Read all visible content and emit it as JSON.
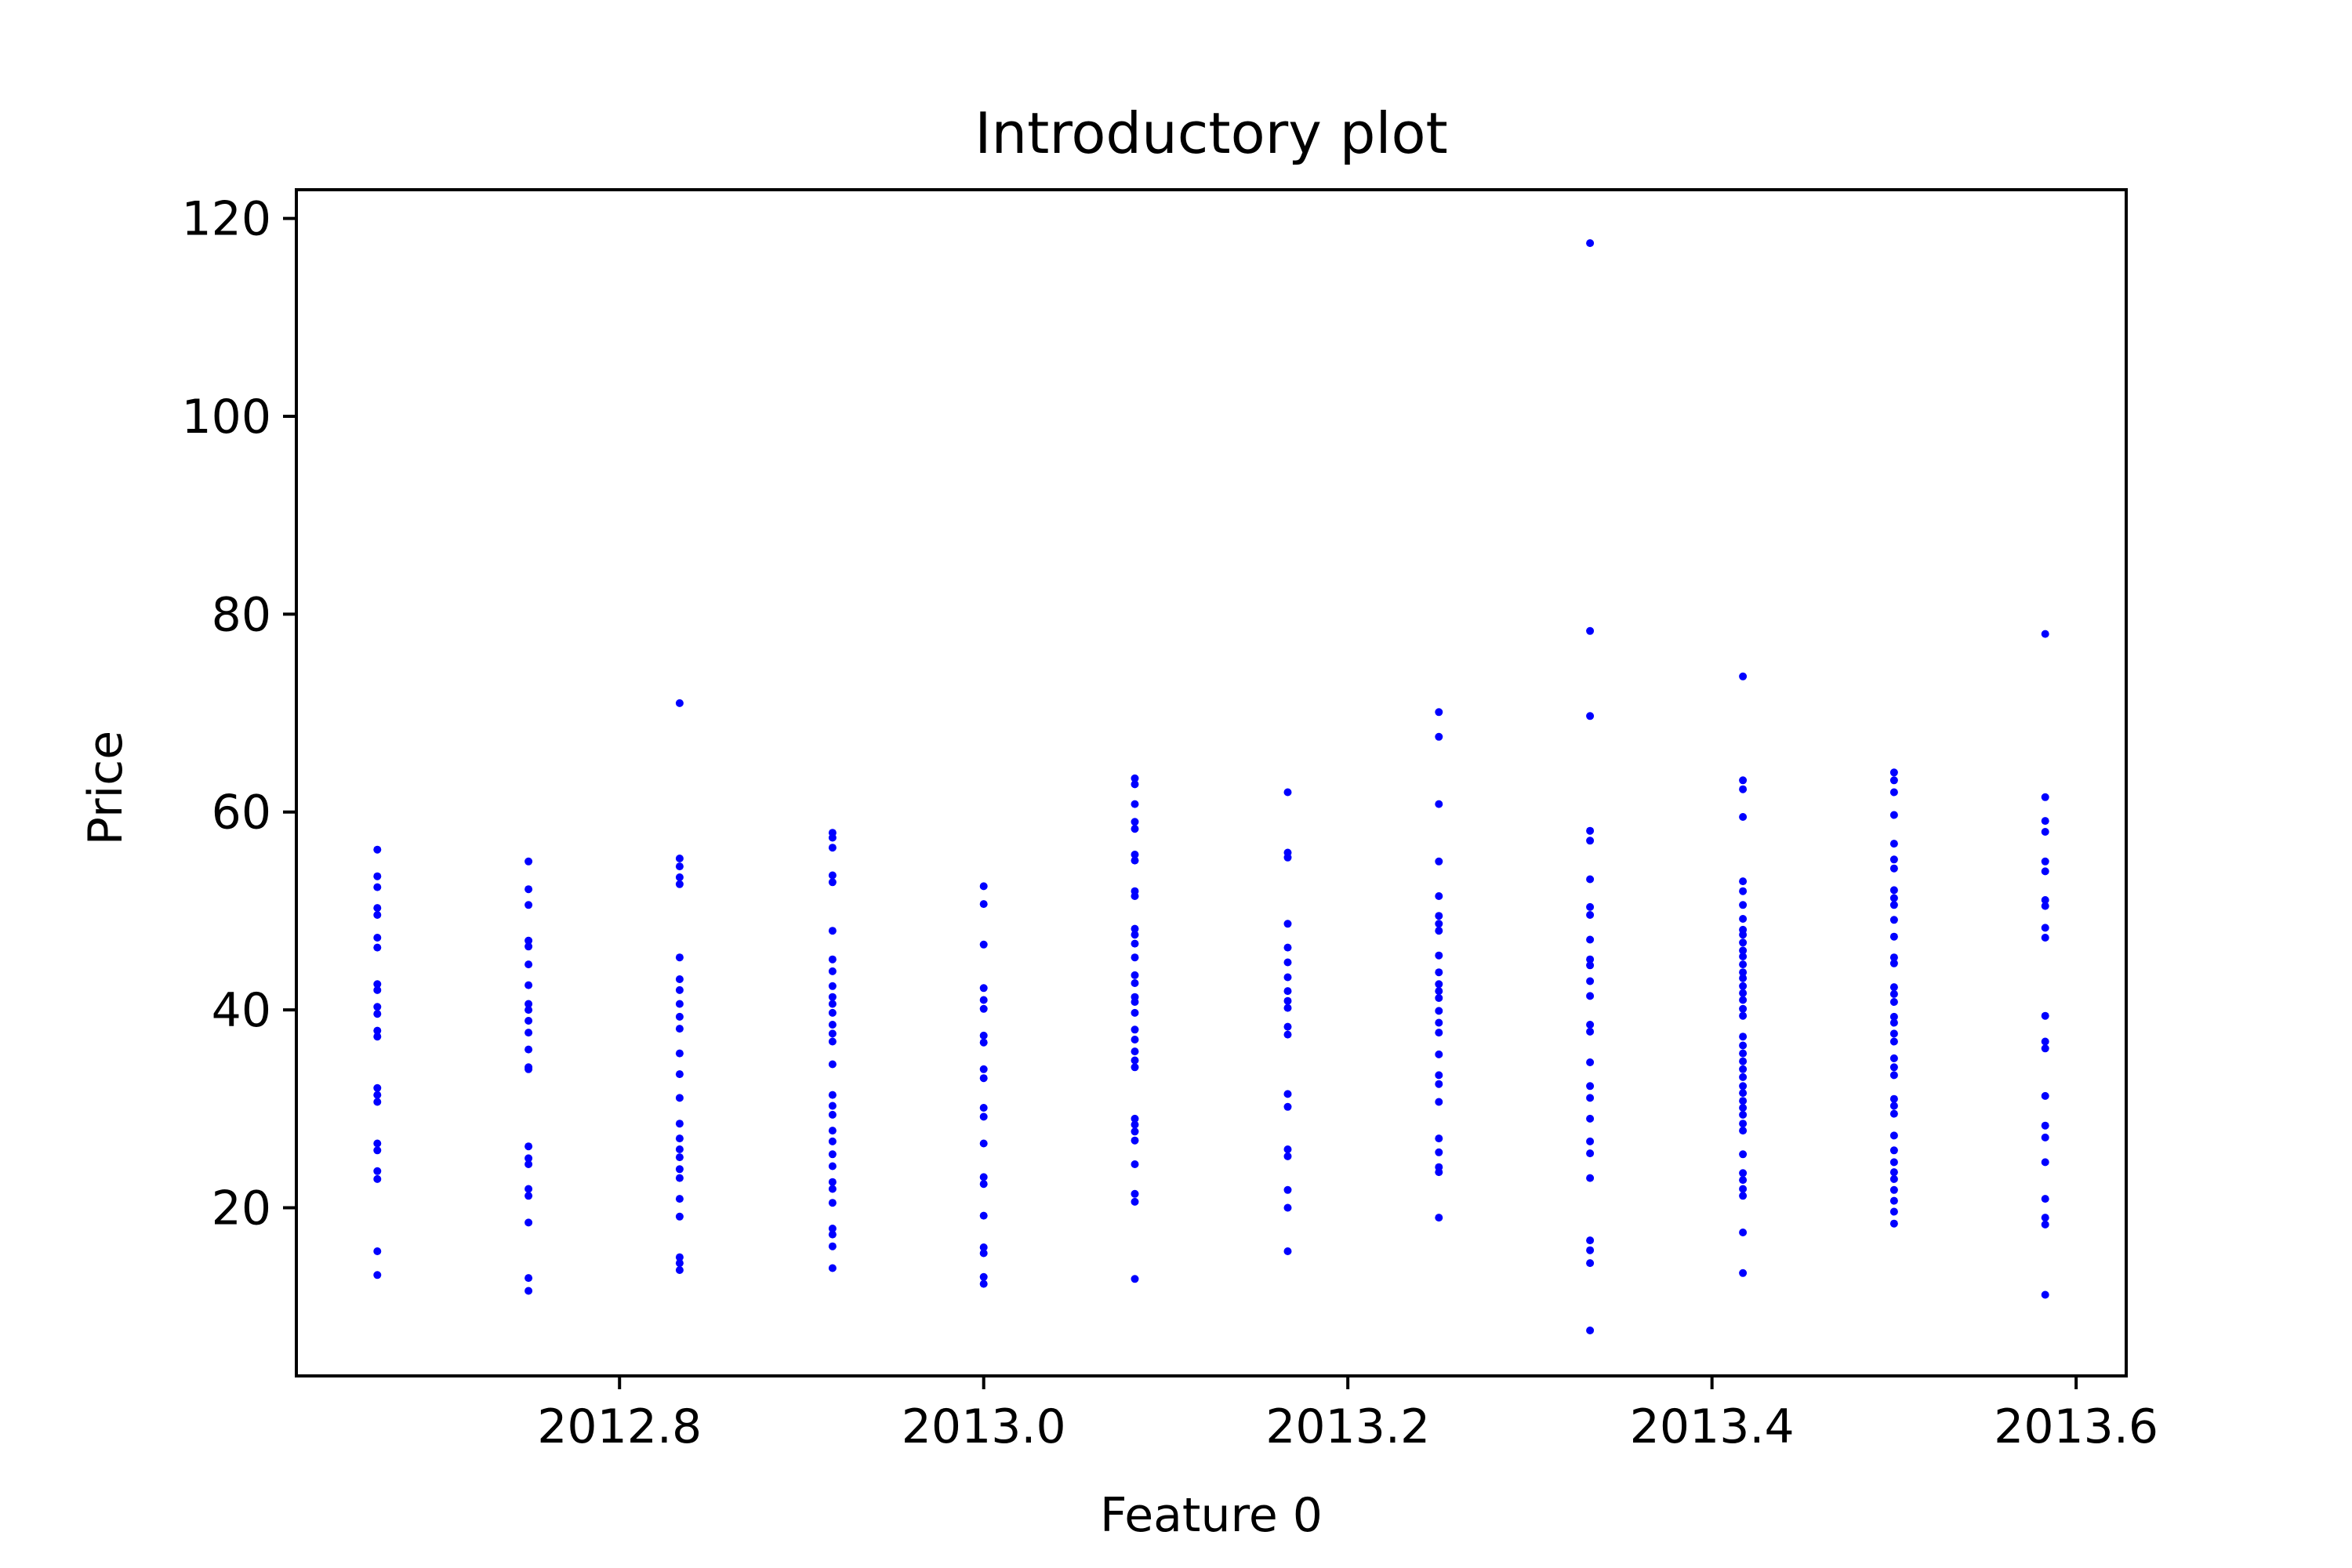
{
  "chart_data": {
    "type": "scatter",
    "title": "Introductory plot",
    "xlabel": "Feature 0",
    "ylabel": "Price",
    "xlim": [
      2012.6225,
      2013.6275
    ],
    "ylim": [
      3.0,
      122.9
    ],
    "xticks": [
      {
        "value": 2012.8,
        "label": "2012.8"
      },
      {
        "value": 2013.0,
        "label": "2013.0"
      },
      {
        "value": 2013.2,
        "label": "2013.2"
      },
      {
        "value": 2013.4,
        "label": "2013.4"
      },
      {
        "value": 2013.6,
        "label": "2013.6"
      }
    ],
    "yticks": [
      {
        "value": 20,
        "label": "20"
      },
      {
        "value": 40,
        "label": "40"
      },
      {
        "value": 60,
        "label": "60"
      },
      {
        "value": 80,
        "label": "80"
      },
      {
        "value": 100,
        "label": "100"
      },
      {
        "value": 120,
        "label": "120"
      }
    ],
    "grid": false,
    "marker_color": "#0000ff",
    "groups": [
      {
        "x": 2012.667,
        "y": [
          56.2,
          53.5,
          52.4,
          50.3,
          49.6,
          47.3,
          46.3,
          42.6,
          42.0,
          40.3,
          39.6,
          37.9,
          37.3,
          32.1,
          31.4,
          30.7,
          26.5,
          25.8,
          23.7,
          22.9,
          15.6,
          13.2
        ]
      },
      {
        "x": 2012.75,
        "y": [
          55.0,
          52.2,
          50.6,
          47.0,
          46.4,
          44.6,
          42.5,
          40.6,
          40.0,
          38.9,
          37.7,
          36.0,
          34.2,
          34.0,
          26.2,
          25.0,
          24.4,
          21.9,
          21.2,
          18.5,
          12.9,
          11.6
        ]
      },
      {
        "x": 2012.833,
        "y": [
          71.0,
          55.3,
          54.5,
          53.4,
          52.7,
          45.3,
          43.1,
          42.0,
          40.6,
          39.3,
          38.1,
          35.6,
          33.5,
          31.1,
          28.5,
          27.0,
          25.9,
          25.1,
          23.9,
          23.0,
          20.9,
          19.1,
          15.0,
          14.4,
          13.7
        ]
      },
      {
        "x": 2012.917,
        "y": [
          57.9,
          57.4,
          56.4,
          53.6,
          52.9,
          48.0,
          45.1,
          43.9,
          42.4,
          41.3,
          40.6,
          39.7,
          38.5,
          37.6,
          36.8,
          34.5,
          31.4,
          30.3,
          29.4,
          27.8,
          26.7,
          25.4,
          24.2,
          22.6,
          21.9,
          20.5,
          17.9,
          17.3,
          16.1,
          13.9
        ]
      },
      {
        "x": 2013.0,
        "y": [
          52.5,
          50.7,
          46.6,
          42.2,
          41.0,
          40.1,
          37.4,
          36.7,
          34.0,
          33.1,
          30.1,
          29.2,
          26.5,
          23.1,
          22.4,
          19.2,
          16.0,
          15.4,
          13.0,
          12.3
        ]
      },
      {
        "x": 2013.083,
        "y": [
          63.4,
          62.8,
          60.8,
          59.0,
          58.3,
          55.7,
          55.1,
          52.0,
          51.5,
          48.2,
          47.6,
          46.7,
          45.3,
          43.5,
          42.7,
          41.3,
          40.8,
          39.7,
          38.0,
          37.0,
          35.8,
          34.9,
          34.2,
          29.0,
          28.4,
          27.7,
          26.8,
          24.4,
          21.4,
          20.6,
          12.8
        ]
      },
      {
        "x": 2013.167,
        "y": [
          62.0,
          55.9,
          55.4,
          48.7,
          46.3,
          44.8,
          43.3,
          41.9,
          40.9,
          40.2,
          38.3,
          37.5,
          31.5,
          30.2,
          25.9,
          25.2,
          21.8,
          20.0,
          15.6
        ]
      },
      {
        "x": 2013.25,
        "y": [
          70.1,
          67.6,
          60.8,
          55.0,
          51.5,
          49.5,
          48.7,
          48.0,
          45.5,
          43.8,
          42.6,
          41.9,
          41.2,
          39.9,
          38.7,
          37.7,
          35.5,
          33.4,
          32.5,
          30.7,
          27.0,
          25.6,
          24.1,
          23.6,
          19.0
        ]
      },
      {
        "x": 2013.333,
        "y": [
          117.5,
          78.3,
          69.7,
          58.1,
          57.1,
          53.2,
          50.4,
          49.6,
          47.1,
          45.1,
          44.5,
          42.9,
          41.4,
          38.5,
          37.8,
          34.7,
          32.3,
          31.1,
          29.0,
          26.7,
          25.5,
          23.0,
          16.7,
          15.7,
          14.4,
          7.6
        ]
      },
      {
        "x": 2013.417,
        "y": [
          73.7,
          63.2,
          62.3,
          59.5,
          53.0,
          52.0,
          50.6,
          49.2,
          48.1,
          47.6,
          46.8,
          46.0,
          45.4,
          44.6,
          43.8,
          43.2,
          42.4,
          41.7,
          41.0,
          40.1,
          39.4,
          37.3,
          36.4,
          35.6,
          34.8,
          34.0,
          33.2,
          32.3,
          31.6,
          30.8,
          30.1,
          29.4,
          28.5,
          27.8,
          25.4,
          23.5,
          22.8,
          21.9,
          21.2,
          17.5,
          13.4
        ]
      },
      {
        "x": 2013.5,
        "y": [
          64.0,
          63.2,
          62.0,
          59.7,
          56.8,
          55.2,
          54.3,
          52.1,
          51.3,
          50.6,
          49.1,
          47.4,
          45.3,
          44.7,
          42.3,
          41.6,
          40.8,
          39.3,
          38.7,
          37.6,
          36.8,
          35.1,
          34.2,
          33.4,
          31.0,
          30.3,
          29.5,
          27.3,
          25.8,
          24.6,
          23.6,
          22.9,
          21.8,
          20.7,
          19.6,
          18.4
        ]
      },
      {
        "x": 2013.583,
        "y": [
          78.0,
          61.5,
          59.1,
          58.0,
          55.0,
          54.0,
          51.1,
          50.5,
          48.3,
          47.3,
          39.4,
          36.8,
          36.1,
          31.3,
          28.3,
          27.1,
          24.6,
          20.9,
          19.0,
          18.3,
          11.2
        ]
      }
    ]
  }
}
